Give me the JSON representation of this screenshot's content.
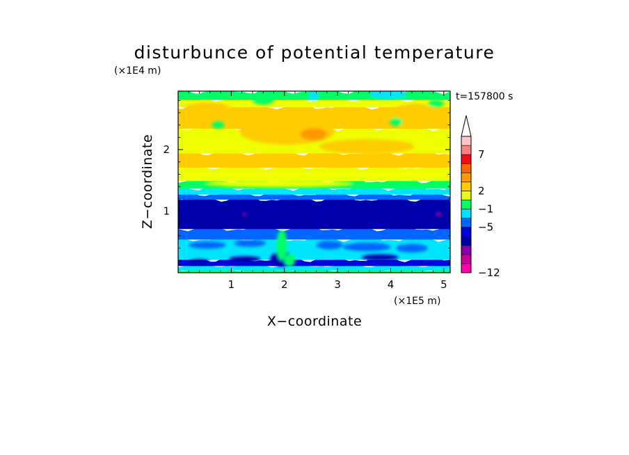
{
  "chart_data": {
    "type": "heatmap",
    "title": "disturbunce of potential temperature",
    "time_label": "t=157800 s",
    "xlabel": "X−coordinate",
    "ylabel": "Z−coordinate",
    "x_scale_label": "(×1E5 m)",
    "y_scale_label": "(×1E4 m)",
    "xlim": [
      0,
      5.12
    ],
    "ylim": [
      0,
      2.95
    ],
    "x_ticks": [
      {
        "value": 1,
        "label": "1"
      },
      {
        "value": 2,
        "label": "2"
      },
      {
        "value": 3,
        "label": "3"
      },
      {
        "value": 4,
        "label": "4"
      },
      {
        "value": 5,
        "label": "5"
      }
    ],
    "y_ticks": [
      {
        "value": 1,
        "label": "1"
      },
      {
        "value": 2,
        "label": "2"
      }
    ],
    "grid": false,
    "colorbar": {
      "levels": [
        {
          "color": "#ff00aa"
        },
        {
          "color": "#cc0099"
        },
        {
          "color": "#8800aa"
        },
        {
          "color": "#0000aa"
        },
        {
          "color": "#0000dd"
        },
        {
          "color": "#0066ff"
        },
        {
          "color": "#00e5ff"
        },
        {
          "color": "#00ff66"
        },
        {
          "color": "#eeff00"
        },
        {
          "color": "#ffcc00"
        },
        {
          "color": "#ff9900"
        },
        {
          "color": "#ff6600"
        },
        {
          "color": "#ee1111"
        },
        {
          "color": "#ff8080"
        },
        {
          "color": "#ffc8c8"
        }
      ],
      "extend_top_color": "#ffffff",
      "tick_labels": [
        {
          "level_boundary": 0,
          "label": "−12"
        },
        {
          "level_boundary": 5,
          "label": "−5"
        },
        {
          "level_boundary": 7,
          "label": "−1"
        },
        {
          "level_boundary": 9,
          "label": "2"
        },
        {
          "level_boundary": 13,
          "label": "7"
        }
      ]
    },
    "field_bands": [
      {
        "z_from": 0.0,
        "z_to": 0.05,
        "color": "#00ff66"
      },
      {
        "z_from": 0.05,
        "z_to": 0.12,
        "color": "#00e5ff"
      },
      {
        "z_from": 0.12,
        "z_to": 0.22,
        "color": "#0000dd"
      },
      {
        "z_from": 0.22,
        "z_to": 0.55,
        "color": "#00e5ff"
      },
      {
        "z_from": 0.55,
        "z_to": 0.72,
        "color": "#0066ff"
      },
      {
        "z_from": 0.72,
        "z_to": 1.2,
        "color": "#0000aa"
      },
      {
        "z_from": 1.2,
        "z_to": 1.28,
        "color": "#0066ff"
      },
      {
        "z_from": 1.28,
        "z_to": 1.38,
        "color": "#00e5ff"
      },
      {
        "z_from": 1.38,
        "z_to": 1.5,
        "color": "#00ff66"
      },
      {
        "z_from": 1.5,
        "z_to": 1.72,
        "color": "#eeff00"
      },
      {
        "z_from": 1.72,
        "z_to": 1.95,
        "color": "#ffcc00"
      },
      {
        "z_from": 1.95,
        "z_to": 2.35,
        "color": "#eeff00"
      },
      {
        "z_from": 2.35,
        "z_to": 2.7,
        "color": "#ffcc00"
      },
      {
        "z_from": 2.7,
        "z_to": 2.82,
        "color": "#eeff00"
      },
      {
        "z_from": 2.82,
        "z_to": 2.95,
        "color": "#00ff66"
      }
    ],
    "field_patches": [
      {
        "x": 2.05,
        "z": 2.3,
        "rx": 0.9,
        "rz": 0.22,
        "color": "#ffcc00"
      },
      {
        "x": 2.55,
        "z": 2.25,
        "rx": 0.25,
        "rz": 0.1,
        "color": "#ff9900"
      },
      {
        "x": 3.55,
        "z": 2.05,
        "rx": 0.9,
        "rz": 0.12,
        "color": "#ffcc00"
      },
      {
        "x": 4.45,
        "z": 2.55,
        "rx": 0.45,
        "rz": 0.2,
        "color": "#ffcc00"
      },
      {
        "x": 0.55,
        "z": 2.65,
        "rx": 0.45,
        "rz": 0.12,
        "color": "#ffcc00"
      },
      {
        "x": 0.75,
        "z": 2.4,
        "rx": 0.12,
        "rz": 0.06,
        "color": "#00ff66"
      },
      {
        "x": 3.95,
        "z": 2.9,
        "rx": 0.35,
        "rz": 0.08,
        "color": "#00e5ff"
      },
      {
        "x": 4.1,
        "z": 2.45,
        "rx": 0.12,
        "rz": 0.07,
        "color": "#00ff66"
      },
      {
        "x": 4.85,
        "z": 2.75,
        "rx": 0.15,
        "rz": 0.06,
        "color": "#00ff66"
      },
      {
        "x": 2.55,
        "z": 2.88,
        "rx": 0.1,
        "rz": 0.08,
        "color": "#00e5ff"
      },
      {
        "x": 1.6,
        "z": 2.8,
        "rx": 0.2,
        "rz": 0.07,
        "color": "#00ff66"
      },
      {
        "x": 0.3,
        "z": 2.25,
        "rx": 0.35,
        "rz": 0.08,
        "color": "#eeff00"
      },
      {
        "x": 1.9,
        "z": 1.45,
        "rx": 1.4,
        "rz": 0.06,
        "color": "#eeff00"
      },
      {
        "x": 4.9,
        "z": 0.95,
        "rx": 0.05,
        "rz": 0.04,
        "color": "#8800aa"
      },
      {
        "x": 1.25,
        "z": 0.95,
        "rx": 0.04,
        "rz": 0.03,
        "color": "#8800aa"
      },
      {
        "x": 0.55,
        "z": 0.45,
        "rx": 0.35,
        "rz": 0.06,
        "color": "#0066ff"
      },
      {
        "x": 1.35,
        "z": 0.48,
        "rx": 0.3,
        "rz": 0.06,
        "color": "#0066ff"
      },
      {
        "x": 2.85,
        "z": 0.45,
        "rx": 0.25,
        "rz": 0.07,
        "color": "#0066ff"
      },
      {
        "x": 3.55,
        "z": 0.42,
        "rx": 0.45,
        "rz": 0.07,
        "color": "#0066ff"
      },
      {
        "x": 4.4,
        "z": 0.4,
        "rx": 0.3,
        "rz": 0.07,
        "color": "#0066ff"
      },
      {
        "x": 0.4,
        "z": 0.18,
        "rx": 0.2,
        "rz": 0.04,
        "color": "#0000aa"
      },
      {
        "x": 1.25,
        "z": 0.22,
        "rx": 0.3,
        "rz": 0.05,
        "color": "#0000aa"
      },
      {
        "x": 1.95,
        "z": 0.22,
        "rx": 0.22,
        "rz": 0.12,
        "color": "#0000aa"
      },
      {
        "x": 3.8,
        "z": 0.25,
        "rx": 0.35,
        "rz": 0.05,
        "color": "#0000aa"
      },
      {
        "x": 1.95,
        "z": 0.45,
        "rx": 0.1,
        "rz": 0.25,
        "color": "#00ff66"
      },
      {
        "x": 2.1,
        "z": 0.2,
        "rx": 0.1,
        "rz": 0.1,
        "color": "#00ff66"
      }
    ]
  }
}
